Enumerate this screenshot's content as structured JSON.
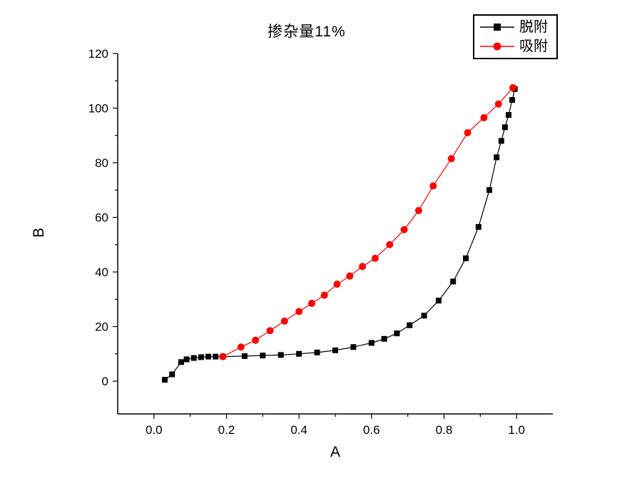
{
  "figure": {
    "background": "#ffffff"
  },
  "chart_data": {
    "type": "line",
    "title": "掺杂量11%",
    "xlabel": "A",
    "ylabel": "B",
    "xlim": [
      -0.1,
      1.1
    ],
    "ylim": [
      -12,
      120
    ],
    "xticks": [
      0.0,
      0.2,
      0.4,
      0.6,
      0.8,
      1.0
    ],
    "yticks": [
      0,
      20,
      40,
      60,
      80,
      100,
      120
    ],
    "grid": false,
    "legend": {
      "position": "top-right",
      "border_color": "#000000"
    },
    "series": [
      {
        "name": "脱附",
        "color": "#000000",
        "marker": "square",
        "x": [
          0.03,
          0.05,
          0.075,
          0.09,
          0.11,
          0.13,
          0.15,
          0.17,
          0.19,
          0.25,
          0.3,
          0.35,
          0.4,
          0.45,
          0.5,
          0.55,
          0.6,
          0.635,
          0.67,
          0.705,
          0.745,
          0.785,
          0.825,
          0.86,
          0.895,
          0.925,
          0.945,
          0.958,
          0.968,
          0.978,
          0.988,
          0.995
        ],
        "y": [
          0.5,
          2.5,
          7,
          8,
          8.5,
          8.8,
          9,
          9,
          9,
          9.2,
          9.4,
          9.6,
          10,
          10.5,
          11.3,
          12.5,
          14,
          15.5,
          17.5,
          20.5,
          24,
          29.5,
          36.5,
          45,
          56.5,
          70,
          82,
          88,
          93,
          97.5,
          103,
          107
        ]
      },
      {
        "name": "吸附",
        "color": "#ff0000",
        "marker": "circle",
        "x": [
          0.19,
          0.24,
          0.28,
          0.32,
          0.36,
          0.4,
          0.435,
          0.47,
          0.505,
          0.54,
          0.575,
          0.61,
          0.65,
          0.69,
          0.73,
          0.77,
          0.82,
          0.865,
          0.91,
          0.95,
          0.99
        ],
        "y": [
          9,
          12.5,
          15,
          18.5,
          22,
          25.5,
          28.5,
          31.5,
          35.5,
          38.5,
          42,
          45,
          50,
          55.5,
          62.5,
          71.5,
          81.5,
          91,
          96.5,
          101.5,
          107.5
        ]
      }
    ]
  }
}
